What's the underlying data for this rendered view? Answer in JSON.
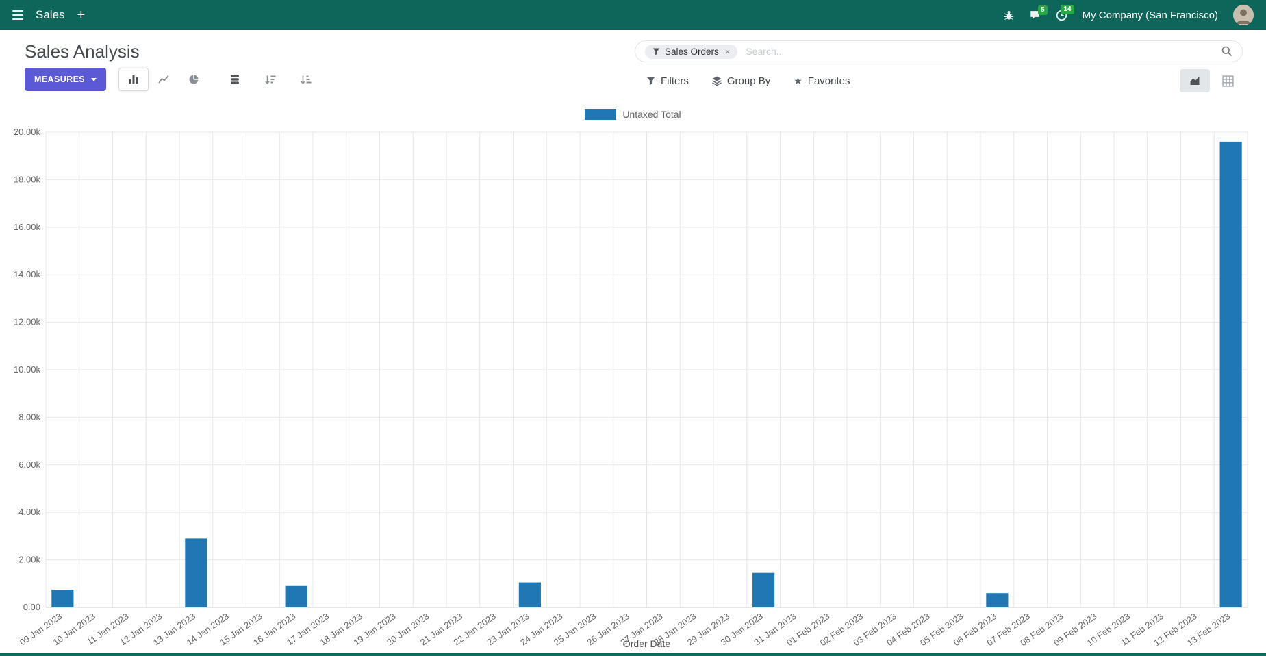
{
  "colors": {
    "navbar-bg": "#0e655a",
    "navbar-text": "#ffffff",
    "primary-button": "#5c59d6",
    "bar": "#1f77b4",
    "badge": "#28a745",
    "grid": "#e7e7e7",
    "axis-text": "#666666"
  },
  "navbar": {
    "app_name": "Sales",
    "plus": "+",
    "messages_badge": "5",
    "activities_badge": "14",
    "company": "My Company (San Francisco)"
  },
  "control_panel": {
    "title": "Sales Analysis",
    "measures_label": "MEASURES",
    "filters_label": "Filters",
    "group_by_label": "Group By",
    "favorites_label": "Favorites",
    "search": {
      "facet_label": "Sales Orders",
      "facet_remove": "×",
      "placeholder": "Search..."
    }
  },
  "chart_data": {
    "type": "bar",
    "title": "",
    "xlabel": "Order Date",
    "ylabel": "",
    "ylim": [
      0,
      20000
    ],
    "ytick_step": 2000,
    "ytick_labels": [
      "0.00",
      "2.00k",
      "4.00k",
      "6.00k",
      "8.00k",
      "10.00k",
      "12.00k",
      "14.00k",
      "16.00k",
      "18.00k",
      "20.00k"
    ],
    "grid": true,
    "legend_position": "top",
    "categories": [
      "09 Jan 2023",
      "10 Jan 2023",
      "11 Jan 2023",
      "12 Jan 2023",
      "13 Jan 2023",
      "14 Jan 2023",
      "15 Jan 2023",
      "16 Jan 2023",
      "17 Jan 2023",
      "18 Jan 2023",
      "19 Jan 2023",
      "20 Jan 2023",
      "21 Jan 2023",
      "22 Jan 2023",
      "23 Jan 2023",
      "24 Jan 2023",
      "25 Jan 2023",
      "26 Jan 2023",
      "27 Jan 2023",
      "28 Jan 2023",
      "29 Jan 2023",
      "30 Jan 2023",
      "31 Jan 2023",
      "01 Feb 2023",
      "02 Feb 2023",
      "03 Feb 2023",
      "04 Feb 2023",
      "05 Feb 2023",
      "06 Feb 2023",
      "07 Feb 2023",
      "08 Feb 2023",
      "09 Feb 2023",
      "10 Feb 2023",
      "11 Feb 2023",
      "12 Feb 2023",
      "13 Feb 2023"
    ],
    "series": [
      {
        "name": "Untaxed Total",
        "color": "#1f77b4",
        "values": [
          750,
          0,
          0,
          0,
          2900,
          0,
          0,
          900,
          0,
          0,
          0,
          0,
          0,
          0,
          1050,
          0,
          0,
          0,
          0,
          0,
          0,
          1450,
          0,
          0,
          0,
          0,
          0,
          0,
          600,
          0,
          0,
          0,
          0,
          0,
          0,
          19600
        ]
      }
    ]
  }
}
